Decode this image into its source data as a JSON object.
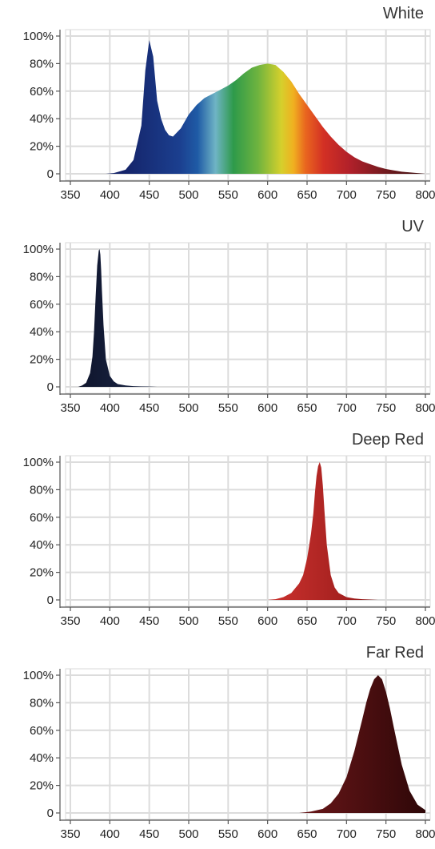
{
  "x_ticks": [
    "350",
    "400",
    "450",
    "500",
    "550",
    "600",
    "650",
    "700",
    "750",
    "800"
  ],
  "y_ticks": [
    "0",
    "20%",
    "40%",
    "60%",
    "80%",
    "100%"
  ],
  "chart_data": [
    {
      "type": "area",
      "title": "White",
      "xlim": [
        350,
        800
      ],
      "ylim": [
        0,
        100
      ],
      "gradient": "spectrum",
      "x": [
        350,
        380,
        395,
        405,
        420,
        430,
        440,
        445,
        450,
        455,
        460,
        465,
        470,
        475,
        480,
        490,
        500,
        510,
        520,
        530,
        540,
        550,
        560,
        570,
        580,
        590,
        600,
        610,
        620,
        630,
        640,
        650,
        660,
        670,
        680,
        690,
        700,
        710,
        720,
        730,
        740,
        750,
        760,
        770,
        780,
        790,
        800
      ],
      "values": [
        0,
        0,
        0,
        0.5,
        3,
        10,
        35,
        75,
        97,
        85,
        53,
        40,
        32,
        28,
        27,
        33,
        43,
        50,
        55,
        58,
        61,
        64,
        68,
        73,
        77,
        79,
        80,
        79,
        74,
        67,
        58,
        50,
        42,
        34,
        27,
        21,
        16,
        12,
        9,
        7,
        5,
        3.5,
        2.5,
        1.5,
        1,
        0.5,
        0
      ]
    },
    {
      "type": "area",
      "title": "UV",
      "xlim": [
        350,
        800
      ],
      "ylim": [
        0,
        100
      ],
      "colors": [
        "#0d1329",
        "#2a3a64"
      ],
      "x": [
        350,
        360,
        365,
        370,
        375,
        378,
        380,
        382,
        384,
        386,
        387,
        388,
        389,
        390,
        392,
        395,
        400,
        405,
        410,
        420,
        430,
        440,
        450,
        460,
        800
      ],
      "values": [
        0,
        0,
        1,
        3,
        10,
        22,
        40,
        65,
        88,
        99,
        100,
        96,
        85,
        70,
        45,
        20,
        8,
        4,
        2,
        1,
        0.5,
        0.3,
        0.2,
        0,
        0
      ]
    },
    {
      "type": "area",
      "title": "Deep Red",
      "xlim": [
        350,
        800
      ],
      "ylim": [
        0,
        100
      ],
      "colors": [
        "#7a0f10",
        "#e03a35"
      ],
      "x": [
        350,
        600,
        610,
        620,
        630,
        640,
        645,
        650,
        655,
        658,
        660,
        662,
        664,
        666,
        668,
        670,
        672,
        675,
        680,
        685,
        690,
        700,
        710,
        720,
        740,
        800
      ],
      "values": [
        0,
        0,
        0.5,
        2,
        5,
        12,
        18,
        30,
        48,
        63,
        78,
        90,
        97,
        100,
        96,
        83,
        65,
        40,
        18,
        9,
        5,
        2,
        1,
        0.5,
        0,
        0
      ]
    },
    {
      "type": "area",
      "title": "Far Red",
      "xlim": [
        350,
        800
      ],
      "ylim": [
        0,
        100
      ],
      "colors": [
        "#2e0708",
        "#8a1f22"
      ],
      "x": [
        350,
        640,
        655,
        670,
        680,
        690,
        700,
        710,
        720,
        725,
        730,
        735,
        740,
        745,
        750,
        755,
        760,
        770,
        780,
        790,
        800
      ],
      "values": [
        0,
        0,
        1,
        3,
        7,
        14,
        26,
        45,
        68,
        80,
        90,
        97,
        100,
        97,
        88,
        76,
        62,
        35,
        16,
        6,
        2
      ]
    }
  ]
}
